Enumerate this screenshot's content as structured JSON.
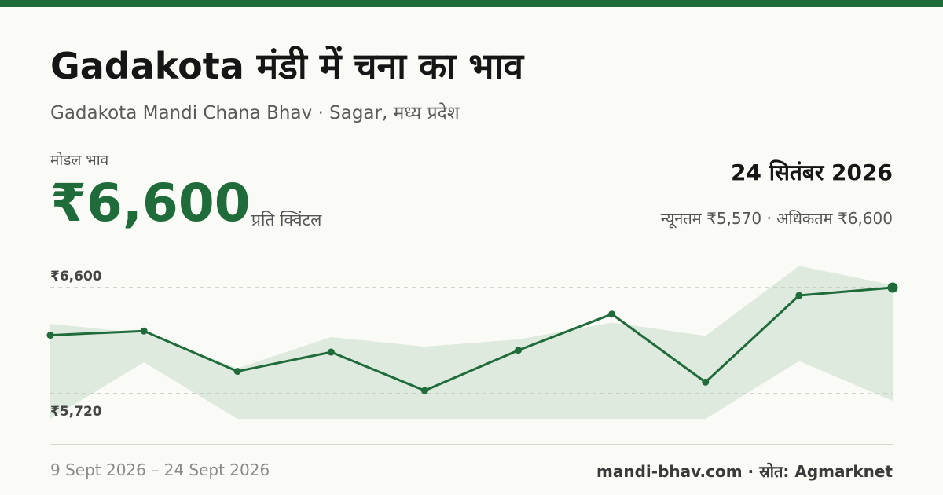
{
  "header": {
    "title": "Gadakota मंडी में चना का भाव",
    "subtitle": "Gadakota Mandi Chana Bhav · Sagar, मध्य प्रदेश"
  },
  "summary": {
    "model_label": "मोडल भाव",
    "model_price": "₹6,600",
    "unit": "प्रति क्विंटल",
    "date": "24 सितंबर 2026",
    "min_max": "न्यूनतम ₹5,570 · अधिकतम ₹6,600"
  },
  "footer": {
    "range": "9 Sept 2026 – 24 Sept 2026",
    "source": "mandi-bhav.com · स्रोत: Agmarknet"
  },
  "colors": {
    "accent": "#1f6b3a",
    "band": "#dfeadf"
  },
  "chart_data": {
    "type": "line",
    "points": 10,
    "reference_lines": [
      {
        "label": "₹6,600",
        "value": 6600
      },
      {
        "label": "₹5,720",
        "value": 5720
      }
    ],
    "series": [
      {
        "values": [
          6205,
          6240,
          5905,
          6065,
          5745,
          6080,
          6380,
          5815,
          6535,
          6600
        ]
      }
    ],
    "band_upper": [
      6300,
      6220,
      5930,
      6190,
      6110,
      6170,
      6310,
      6200,
      6780,
      6620
    ],
    "band_lower": [
      5510,
      5980,
      5510,
      5510,
      5510,
      5510,
      5510,
      5510,
      5990,
      5660
    ],
    "ylim": [
      5400,
      6900
    ]
  }
}
